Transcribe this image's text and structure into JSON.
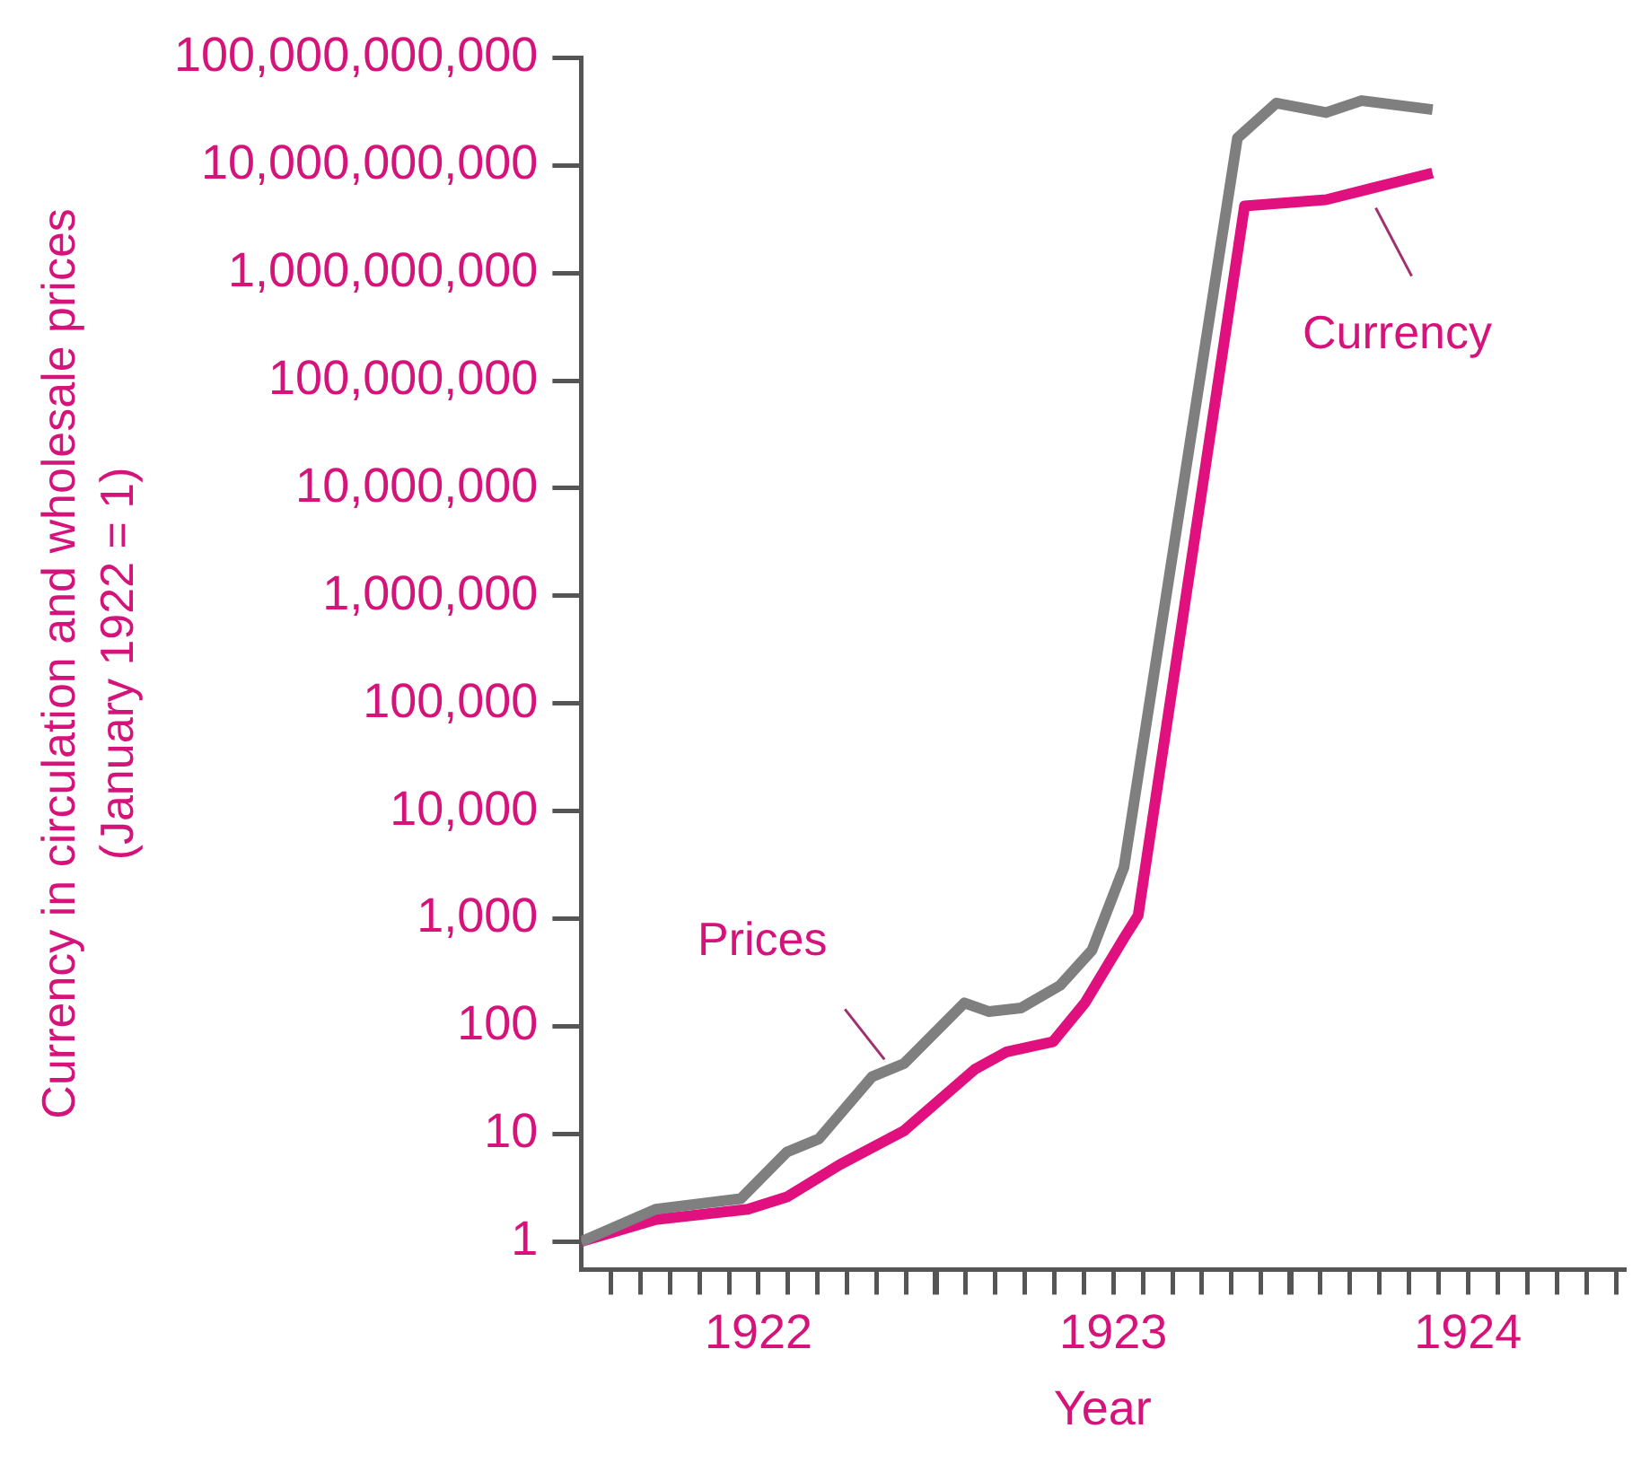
{
  "chart_data": {
    "type": "line",
    "xlabel": "Year",
    "ylabel": "Currency in circulation and wholesale prices\n(January 1922 = 1)",
    "log": "y",
    "grid": false,
    "legend": false,
    "marker": "none",
    "line_style": "solid",
    "xlim": [
      1922,
      1924.94
    ],
    "ylim": [
      0.55,
      100000000000
    ],
    "xticks": [
      {
        "value": 1922.0833,
        "label": null
      },
      {
        "value": 1922.1667,
        "label": null
      },
      {
        "value": 1922.25,
        "label": null
      },
      {
        "value": 1922.3333,
        "label": null
      },
      {
        "value": 1922.4167,
        "label": null
      },
      {
        "value": 1922.5,
        "label": "1922"
      },
      {
        "value": 1922.5833,
        "label": null
      },
      {
        "value": 1922.6667,
        "label": null
      },
      {
        "value": 1922.75,
        "label": null
      },
      {
        "value": 1922.8333,
        "label": null
      },
      {
        "value": 1922.9167,
        "label": null
      },
      {
        "value": 1923,
        "label": null
      },
      {
        "value": 1923.0833,
        "label": null
      },
      {
        "value": 1923.1667,
        "label": null
      },
      {
        "value": 1923.25,
        "label": null
      },
      {
        "value": 1923.3333,
        "label": null
      },
      {
        "value": 1923.4167,
        "label": null
      },
      {
        "value": 1923.5,
        "label": "1923"
      },
      {
        "value": 1923.5833,
        "label": null
      },
      {
        "value": 1923.6667,
        "label": null
      },
      {
        "value": 1923.75,
        "label": null
      },
      {
        "value": 1923.8333,
        "label": null
      },
      {
        "value": 1923.9167,
        "label": null
      },
      {
        "value": 1924,
        "label": null
      },
      {
        "value": 1924.0833,
        "label": null
      },
      {
        "value": 1924.1667,
        "label": null
      },
      {
        "value": 1924.25,
        "label": null
      },
      {
        "value": 1924.3333,
        "label": null
      },
      {
        "value": 1924.4167,
        "label": null
      },
      {
        "value": 1924.5,
        "label": "1924"
      },
      {
        "value": 1924.5833,
        "label": null
      },
      {
        "value": 1924.6667,
        "label": null
      },
      {
        "value": 1924.75,
        "label": null
      },
      {
        "value": 1924.8333,
        "label": null
      },
      {
        "value": 1924.9167,
        "label": null
      }
    ],
    "yticks": [
      1,
      10,
      100,
      {
        "value": 1000,
        "label": "1,000"
      },
      {
        "value": 10000,
        "label": "10,000"
      },
      {
        "value": 100000,
        "label": "100,000"
      },
      {
        "value": 1000000,
        "label": "1,000,000"
      },
      {
        "value": 10000000,
        "label": "10,000,000"
      },
      {
        "value": 100000000,
        "label": "100,000,000"
      },
      {
        "value": 1000000000,
        "label": "1,000,000,000"
      },
      {
        "value": 10000000000,
        "label": "10,000,000,000"
      },
      {
        "value": 100000000000,
        "label": "100,000,000,000"
      }
    ],
    "series": [
      {
        "name": "Prices",
        "color": "#7f7f7f",
        "x": [
          1922,
          1922.21,
          1922.45,
          1922.58,
          1922.67,
          1922.82,
          1922.91,
          1923.08,
          1923.15,
          1923.24,
          1923.35,
          1923.44,
          1923.53,
          1923.85,
          1923.96,
          1924.1,
          1924.2,
          1924.4
        ],
        "values": [
          1,
          2,
          2.5,
          6.8,
          9,
          34,
          45,
          165,
          137,
          148,
          240,
          510,
          3000,
          18000000000,
          38000000000,
          31000000000,
          40000000000,
          33000000000
        ]
      },
      {
        "name": "Currency",
        "color": "#e0107f",
        "x": [
          1922,
          1922.21,
          1922.47,
          1922.58,
          1922.73,
          1922.91,
          1923.11,
          1923.2,
          1923.33,
          1923.42,
          1923.53,
          1923.57,
          1923.87,
          1924.1,
          1924.4
        ],
        "values": [
          1,
          1.6,
          2,
          2.6,
          5.2,
          10.7,
          40,
          58,
          72,
          165,
          660,
          1070,
          4200000000,
          4800000000,
          8500000000
        ]
      }
    ]
  }
}
